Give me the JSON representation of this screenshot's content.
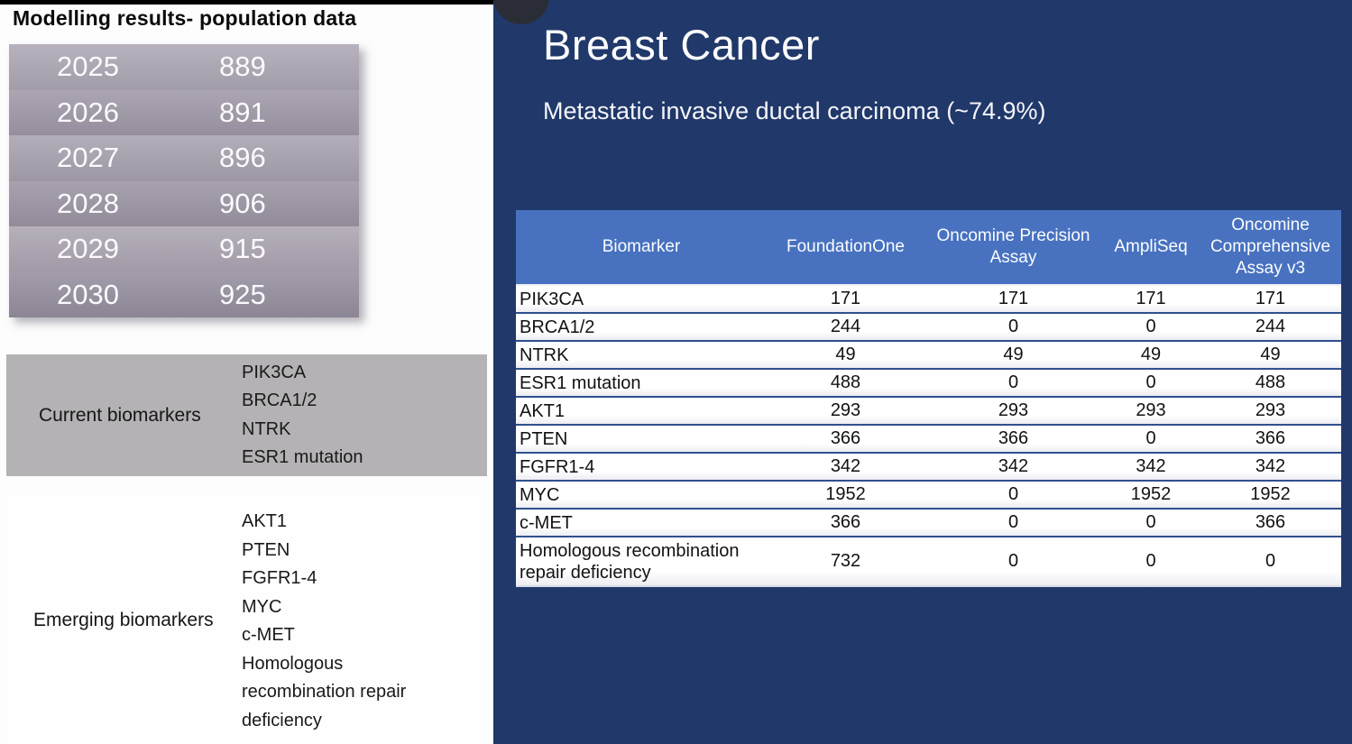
{
  "left_panel": {
    "title": "Modelling results- population data",
    "population_table": {
      "rows": [
        {
          "year": "2025",
          "value": "889"
        },
        {
          "year": "2026",
          "value": "891"
        },
        {
          "year": "2027",
          "value": "896"
        },
        {
          "year": "2028",
          "value": "906"
        },
        {
          "year": "2029",
          "value": "915"
        },
        {
          "year": "2030",
          "value": "925"
        }
      ]
    },
    "current_biomarkers": {
      "label": "Current biomarkers",
      "items_text": "PIK3CA\nBRCA1/2\nNTRK\nESR1 mutation",
      "items": [
        "PIK3CA",
        "BRCA1/2",
        "NTRK",
        "ESR1 mutation"
      ]
    },
    "emerging_biomarkers": {
      "label": "Emerging biomarkers",
      "items_text": "AKT1\nPTEN\nFGFR1-4\nMYC\nc-MET\nHomologous recombination repair deficiency",
      "items": [
        "AKT1",
        "PTEN",
        "FGFR1-4",
        "MYC",
        "c-MET",
        "Homologous recombination repair deficiency"
      ]
    }
  },
  "right_panel": {
    "title": "Breast Cancer",
    "subtitle": "Metastatic invasive ductal carcinoma (~74.9%)",
    "assay_table": {
      "columns": [
        "Biomarker",
        "FoundationOne",
        "Oncomine Precision Assay",
        "AmpliSeq",
        "Oncomine Comprehensive Assay v3"
      ],
      "rows": [
        {
          "biomarker": "PIK3CA",
          "values": [
            "171",
            "171",
            "171",
            "171"
          ]
        },
        {
          "biomarker": "BRCA1/2",
          "values": [
            "244",
            "0",
            "0",
            "244"
          ]
        },
        {
          "biomarker": "NTRK",
          "values": [
            "49",
            "49",
            "49",
            "49"
          ]
        },
        {
          "biomarker": "ESR1 mutation",
          "values": [
            "488",
            "0",
            "0",
            "488"
          ]
        },
        {
          "biomarker": "AKT1",
          "values": [
            "293",
            "293",
            "293",
            "293"
          ]
        },
        {
          "biomarker": "PTEN",
          "values": [
            "366",
            "366",
            "0",
            "366"
          ]
        },
        {
          "biomarker": "FGFR1-4",
          "values": [
            "342",
            "342",
            "342",
            "342"
          ]
        },
        {
          "biomarker": "MYC",
          "values": [
            "1952",
            "0",
            "1952",
            "1952"
          ]
        },
        {
          "biomarker": "c-MET",
          "values": [
            "366",
            "0",
            "0",
            "366"
          ]
        },
        {
          "biomarker": "Homologous recombination repair deficiency",
          "values": [
            "732",
            "0",
            "0",
            "0"
          ]
        }
      ]
    }
  },
  "colors": {
    "slide_background": "#20386a",
    "table_header_blue": "#4872c0",
    "table_row_separator": "#30508f",
    "current_block_gray": "#b4b2b4",
    "pop_row_light": "#aba5b2",
    "pop_row_mid": "#9e96a5",
    "pop_row_dark": "#948c9c"
  },
  "pop_row_colors": [
    "#aba5b2",
    "#9e96a5",
    "#a6a0ad",
    "#9a92a1",
    "#aaa3b0",
    "#948c9c"
  ]
}
